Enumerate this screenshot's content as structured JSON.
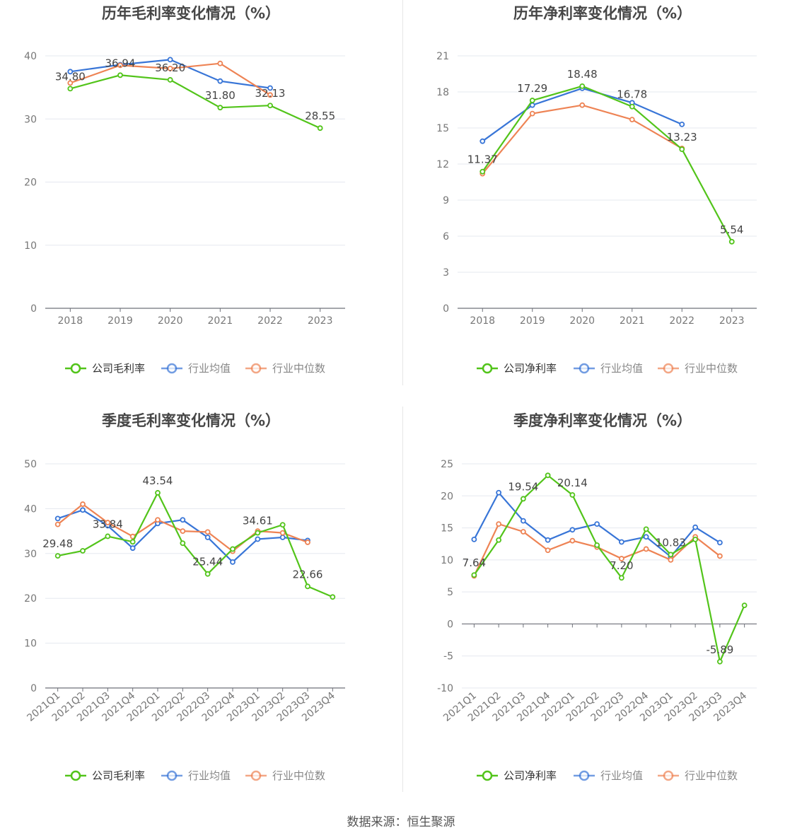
{
  "footer": "数据来源：恒生聚源",
  "colors": {
    "company": "#52c41a",
    "avg": "#3875d7",
    "median": "#ee8354"
  },
  "chart_data": [
    {
      "type": "line",
      "title": "历年毛利率变化情况（%）",
      "categories": [
        "2018",
        "2019",
        "2020",
        "2021",
        "2022",
        "2023"
      ],
      "ylim": [
        0,
        40
      ],
      "yticks": [
        0,
        10,
        20,
        30,
        40
      ],
      "legend_position": "bottom",
      "series": [
        {
          "name": "公司毛利率",
          "values": [
            34.8,
            36.94,
            36.2,
            31.8,
            32.13,
            28.55
          ],
          "labels": [
            "34.80",
            "36.94",
            "36.20",
            "31.80",
            "32.13",
            "28.55"
          ]
        },
        {
          "name": "行业均值",
          "values": [
            37.5,
            38.6,
            39.4,
            36.0,
            34.9,
            null
          ]
        },
        {
          "name": "行业中位数",
          "values": [
            35.7,
            38.5,
            38.0,
            38.8,
            33.8,
            null
          ]
        }
      ]
    },
    {
      "type": "line",
      "title": "历年净利率变化情况（%）",
      "categories": [
        "2018",
        "2019",
        "2020",
        "2021",
        "2022",
        "2023"
      ],
      "ylim": [
        0,
        21
      ],
      "yticks": [
        0,
        3,
        6,
        9,
        12,
        15,
        18,
        21
      ],
      "legend_position": "bottom",
      "series": [
        {
          "name": "公司净利率",
          "values": [
            11.37,
            17.29,
            18.48,
            16.78,
            13.23,
            5.54
          ],
          "labels": [
            "11.37",
            "17.29",
            "18.48",
            "16.78",
            "13.23",
            "5.54"
          ]
        },
        {
          "name": "行业均值",
          "values": [
            13.9,
            16.9,
            18.3,
            17.1,
            15.3,
            null
          ]
        },
        {
          "name": "行业中位数",
          "values": [
            11.2,
            16.2,
            16.9,
            15.7,
            13.3,
            null
          ]
        }
      ]
    },
    {
      "type": "line",
      "title": "季度毛利率变化情况（%）",
      "categories": [
        "2021Q1",
        "2021Q2",
        "2021Q3",
        "2021Q4",
        "2022Q1",
        "2022Q2",
        "2022Q3",
        "2022Q4",
        "2023Q1",
        "2023Q2",
        "2023Q3",
        "2023Q4"
      ],
      "ylim": [
        0,
        50
      ],
      "yticks": [
        0,
        10,
        20,
        30,
        40,
        50
      ],
      "legend_position": "bottom",
      "series": [
        {
          "name": "公司毛利率",
          "values": [
            29.48,
            30.6,
            33.84,
            32.6,
            43.54,
            32.3,
            25.44,
            31.0,
            34.61,
            36.4,
            22.66,
            20.3
          ],
          "labels": [
            "29.48",
            "",
            "33.84",
            "",
            "43.54",
            "",
            "25.44",
            "",
            "34.61",
            "",
            "22.66",
            ""
          ]
        },
        {
          "name": "行业均值",
          "values": [
            37.8,
            39.7,
            36.2,
            31.2,
            36.7,
            37.5,
            33.6,
            28.1,
            33.2,
            33.6,
            32.9,
            null
          ]
        },
        {
          "name": "行业中位数",
          "values": [
            36.5,
            41.0,
            36.9,
            33.8,
            37.5,
            35.0,
            34.8,
            30.5,
            35.0,
            34.6,
            32.5,
            null
          ]
        }
      ]
    },
    {
      "type": "line",
      "title": "季度净利率变化情况（%）",
      "categories": [
        "2021Q1",
        "2021Q2",
        "2021Q3",
        "2021Q4",
        "2022Q1",
        "2022Q2",
        "2022Q3",
        "2022Q4",
        "2023Q1",
        "2023Q2",
        "2023Q3",
        "2023Q4"
      ],
      "ylim": [
        -10,
        25
      ],
      "yticks": [
        -10,
        -5,
        0,
        5,
        10,
        15,
        20,
        25
      ],
      "legend_position": "bottom",
      "series": [
        {
          "name": "公司净利率",
          "values": [
            7.64,
            13.1,
            19.54,
            23.2,
            20.14,
            12.3,
            7.2,
            14.8,
            10.83,
            13.2,
            -5.89,
            2.9
          ],
          "labels": [
            "7.64",
            "",
            "19.54",
            "",
            "20.14",
            "",
            "7.20",
            "",
            "10.83",
            "",
            "-5.89",
            ""
          ]
        },
        {
          "name": "行业均值",
          "values": [
            13.2,
            20.5,
            16.1,
            13.1,
            14.7,
            15.6,
            12.8,
            13.6,
            10.5,
            15.1,
            12.7,
            null
          ]
        },
        {
          "name": "行业中位数",
          "values": [
            7.5,
            15.6,
            14.4,
            11.5,
            13.0,
            12.0,
            10.2,
            11.7,
            10.0,
            13.6,
            10.6,
            null
          ]
        }
      ]
    }
  ]
}
